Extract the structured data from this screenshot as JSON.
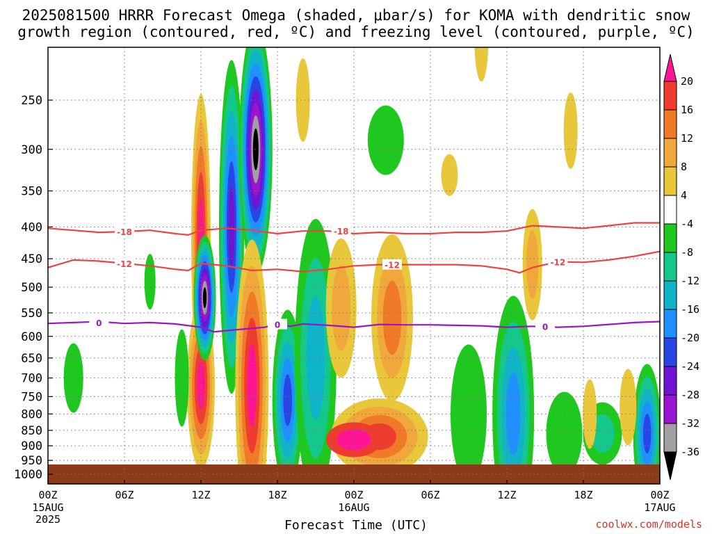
{
  "title": {
    "line1": "2025081500 HRRR Forecast Omega (shaded, μbar/s) for KOMA with dendritic snow",
    "line2": "growth region (contoured, red, ºC) and freezing level (contoured, purple, ºC)"
  },
  "xlabel": "Forecast Time (UTC)",
  "credit": "coolwx.com/models",
  "chart_data": {
    "type": "heatmap",
    "title": "2025081500 HRRR Forecast Omega (shaded, μbar/s) for KOMA with dendritic snow growth region (contoured, red, ºC) and freezing level (contoured, purple, ºC)",
    "xlabel": "Forecast Time (UTC)",
    "ylabel": "",
    "x_range_hours": [
      0,
      48
    ],
    "y_range_hpa": [
      1000,
      200
    ],
    "y_scale": "log",
    "grid": true,
    "x_ticks": [
      {
        "h": 0,
        "label": "00Z",
        "sub": [
          "15AUG",
          "2025"
        ]
      },
      {
        "h": 6,
        "label": "06Z",
        "sub": []
      },
      {
        "h": 12,
        "label": "12Z",
        "sub": []
      },
      {
        "h": 18,
        "label": "18Z",
        "sub": []
      },
      {
        "h": 24,
        "label": "00Z",
        "sub": [
          "16AUG"
        ]
      },
      {
        "h": 30,
        "label": "06Z",
        "sub": []
      },
      {
        "h": 36,
        "label": "12Z",
        "sub": []
      },
      {
        "h": 42,
        "label": "18Z",
        "sub": []
      },
      {
        "h": 48,
        "label": "00Z",
        "sub": [
          "17AUG"
        ]
      }
    ],
    "y_ticks": [
      250,
      300,
      350,
      400,
      450,
      500,
      550,
      600,
      650,
      700,
      750,
      800,
      850,
      900,
      950,
      1000
    ],
    "colorbar": {
      "ticks": [
        20,
        16,
        12,
        8,
        4,
        -4,
        -8,
        -12,
        -16,
        -20,
        -24,
        -28,
        -32,
        -36
      ],
      "levels": [
        {
          "lo": 20,
          "hi": 24,
          "color": "#ff1493"
        },
        {
          "lo": 16,
          "hi": 20,
          "color": "#f03c2e"
        },
        {
          "lo": 12,
          "hi": 16,
          "color": "#f07a28"
        },
        {
          "lo": 8,
          "hi": 12,
          "color": "#f0a83c"
        },
        {
          "lo": 4,
          "hi": 8,
          "color": "#e8c83a"
        },
        {
          "lo": -4,
          "hi": 4,
          "color": "#ffffff"
        },
        {
          "lo": -8,
          "hi": -4,
          "color": "#1ec81e"
        },
        {
          "lo": -12,
          "hi": -8,
          "color": "#14c88c"
        },
        {
          "lo": -16,
          "hi": -12,
          "color": "#10b4c8"
        },
        {
          "lo": -20,
          "hi": -16,
          "color": "#1e90ff"
        },
        {
          "lo": -24,
          "hi": -20,
          "color": "#2846e6"
        },
        {
          "lo": -28,
          "hi": -24,
          "color": "#6e14d2"
        },
        {
          "lo": -32,
          "hi": -28,
          "color": "#9a14d2"
        },
        {
          "lo": -36,
          "hi": -32,
          "color": "#a0a0a0"
        },
        {
          "lo": -40,
          "hi": -36,
          "color": "#000000"
        }
      ]
    },
    "contours": [
      {
        "name": "-18",
        "color": "#f04040",
        "points": [
          [
            0,
            402
          ],
          [
            2,
            405
          ],
          [
            4,
            408
          ],
          [
            6,
            407
          ],
          [
            8,
            405
          ],
          [
            10,
            410
          ],
          [
            11,
            412
          ],
          [
            12,
            405
          ],
          [
            14,
            402
          ],
          [
            16,
            405
          ],
          [
            18,
            410
          ],
          [
            20,
            406
          ],
          [
            22,
            406
          ],
          [
            24,
            410
          ],
          [
            26,
            408
          ],
          [
            28,
            410
          ],
          [
            30,
            410
          ],
          [
            32,
            408
          ],
          [
            34,
            408
          ],
          [
            36,
            406
          ],
          [
            38,
            398
          ],
          [
            40,
            400
          ],
          [
            42,
            402
          ],
          [
            44,
            398
          ],
          [
            46,
            394
          ],
          [
            48,
            394
          ]
        ],
        "labels": [
          [
            6,
            407
          ],
          [
            23,
            406
          ]
        ]
      },
      {
        "name": "-12",
        "color": "#f04040",
        "points": [
          [
            0,
            465
          ],
          [
            2,
            452
          ],
          [
            4,
            454
          ],
          [
            6,
            458
          ],
          [
            8,
            462
          ],
          [
            10,
            468
          ],
          [
            11,
            470
          ],
          [
            12,
            458
          ],
          [
            14,
            462
          ],
          [
            16,
            470
          ],
          [
            18,
            468
          ],
          [
            20,
            472
          ],
          [
            22,
            468
          ],
          [
            24,
            462
          ],
          [
            26,
            460
          ],
          [
            28,
            460
          ],
          [
            30,
            460
          ],
          [
            32,
            460
          ],
          [
            34,
            462
          ],
          [
            36,
            468
          ],
          [
            37,
            474
          ],
          [
            38,
            465
          ],
          [
            40,
            455
          ],
          [
            42,
            456
          ],
          [
            44,
            452
          ],
          [
            46,
            446
          ],
          [
            48,
            438
          ]
        ],
        "labels": [
          [
            6,
            458
          ],
          [
            27,
            460
          ],
          [
            40,
            455
          ]
        ]
      },
      {
        "name": "0",
        "color": "#9a14c8",
        "points": [
          [
            0,
            572
          ],
          [
            2,
            570
          ],
          [
            4,
            568
          ],
          [
            6,
            572
          ],
          [
            8,
            570
          ],
          [
            10,
            573
          ],
          [
            12,
            580
          ],
          [
            13,
            590
          ],
          [
            15,
            585
          ],
          [
            17,
            580
          ],
          [
            18,
            574
          ],
          [
            19,
            578
          ],
          [
            20,
            573
          ],
          [
            22,
            576
          ],
          [
            24,
            580
          ],
          [
            26,
            574
          ],
          [
            28,
            575
          ],
          [
            30,
            575
          ],
          [
            32,
            576
          ],
          [
            34,
            577
          ],
          [
            36,
            580
          ],
          [
            38,
            578
          ],
          [
            40,
            580
          ],
          [
            42,
            578
          ],
          [
            44,
            574
          ],
          [
            46,
            570
          ],
          [
            48,
            568
          ]
        ],
        "labels": [
          [
            4,
            570
          ],
          [
            18,
            574
          ],
          [
            39,
            578
          ]
        ]
      }
    ]
  }
}
